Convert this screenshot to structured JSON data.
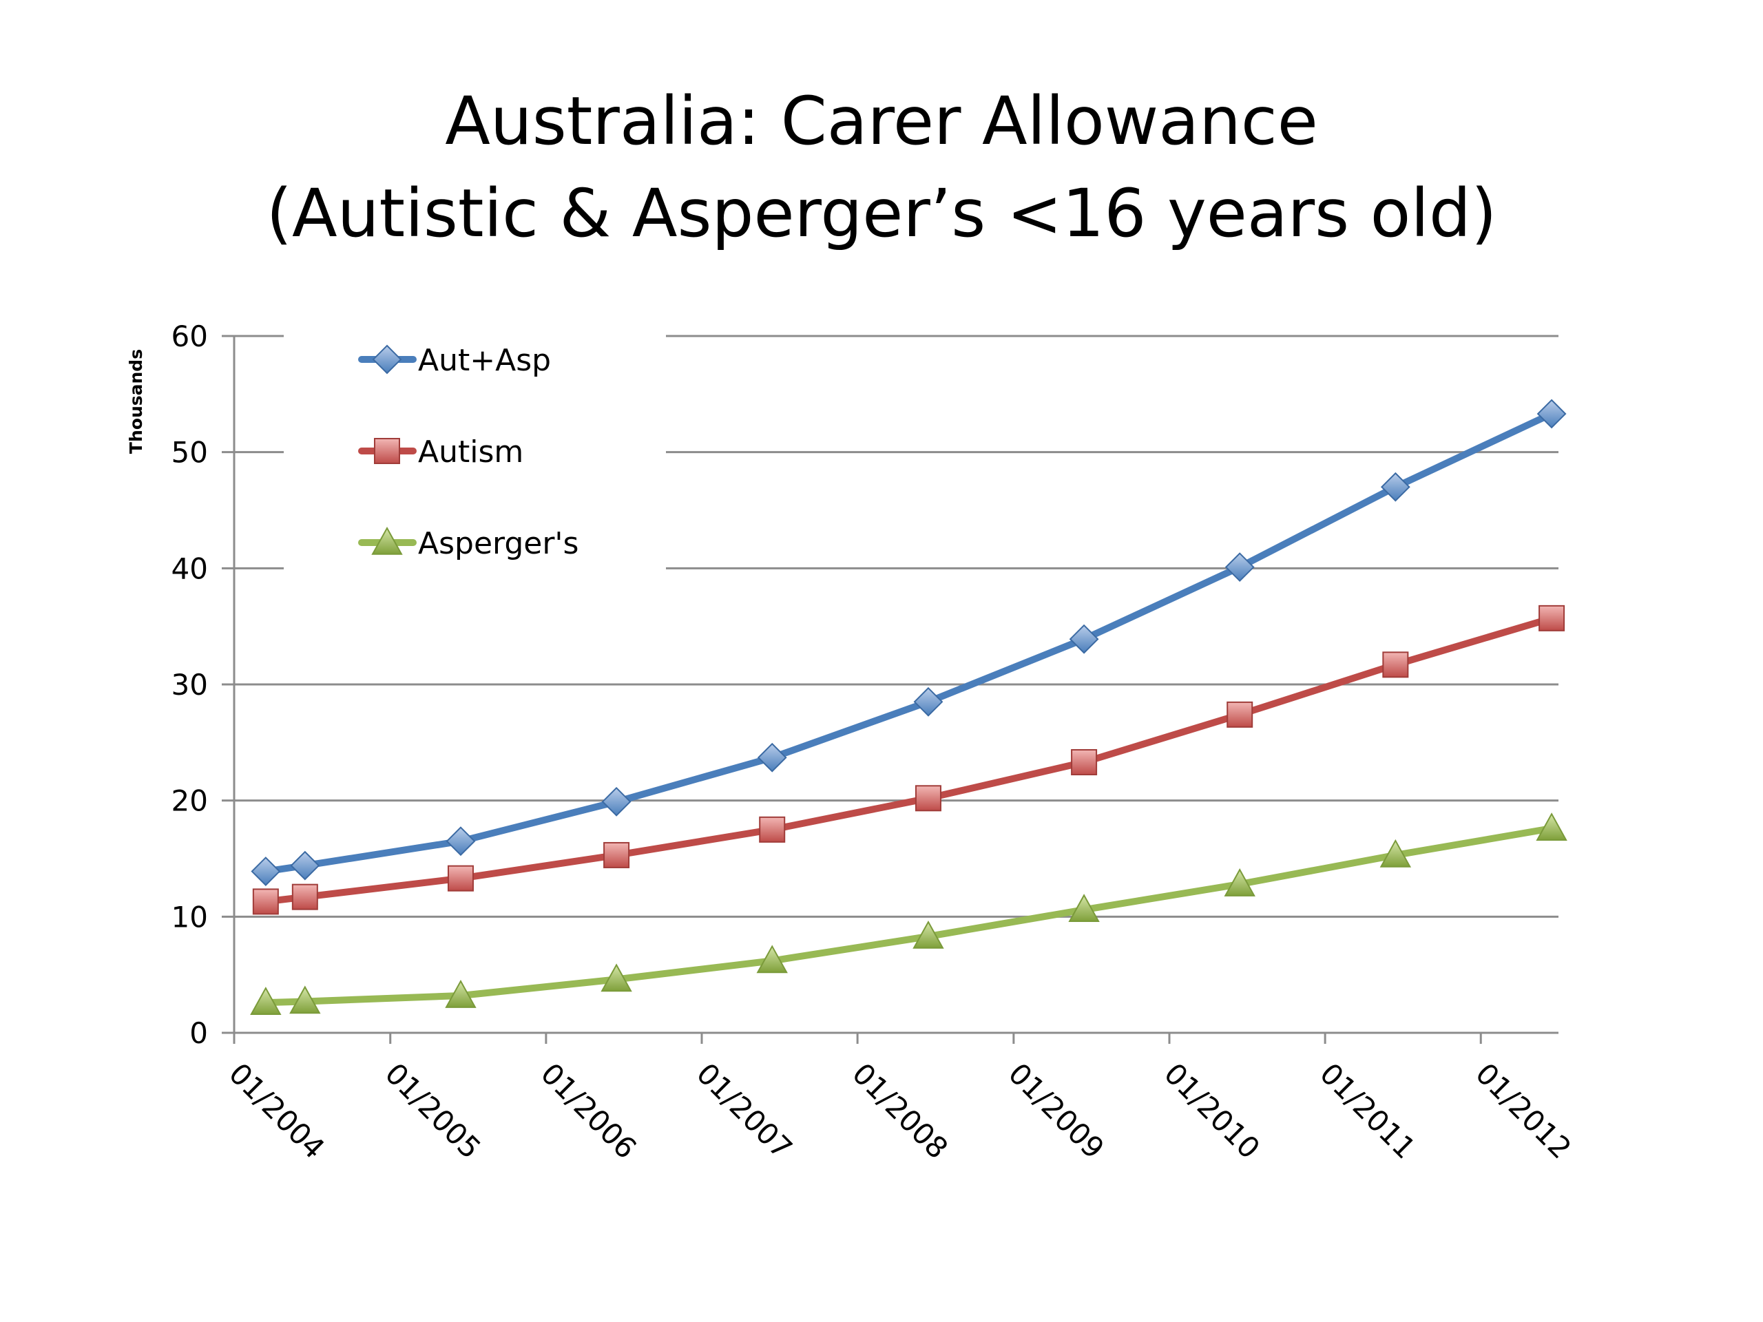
{
  "title_line_1": "Australia:  Carer Allowance",
  "title_line_2": "(Autistic & Asperger’s <16 years old)",
  "chart_data": {
    "type": "line",
    "title": "Australia:  Carer Allowance (Autistic & Asperger’s <16 years old)",
    "xlabel": "",
    "ylabel": "Thousands",
    "ylim": [
      0,
      60
    ],
    "y_ticks": [
      "0",
      "10",
      "20",
      "30",
      "40",
      "50",
      "60"
    ],
    "x_ticks": [
      "01/2004",
      "01/2005",
      "01/2006",
      "01/2007",
      "01/2008",
      "01/2009",
      "01/2010",
      "01/2011",
      "01/2012"
    ],
    "x": [
      "2004-03",
      "2004-06",
      "2005-06",
      "2006-06",
      "2007-06",
      "2008-06",
      "2009-06",
      "2010-06",
      "2011-06",
      "2012-06"
    ],
    "grid": true,
    "legend_position": "top-left",
    "series": [
      {
        "name": "Aut+Asp",
        "color": "#4A7EBB",
        "marker": "diamond",
        "values": [
          13.9,
          14.4,
          16.5,
          19.9,
          23.7,
          28.5,
          33.9,
          40.1,
          47.0,
          53.3
        ]
      },
      {
        "name": "Autism",
        "color": "#BE4B48",
        "marker": "square",
        "values": [
          11.3,
          11.7,
          13.3,
          15.3,
          17.5,
          20.2,
          23.3,
          27.4,
          31.7,
          35.7
        ]
      },
      {
        "name": "Asperger's",
        "color": "#98B954",
        "marker": "triangle",
        "values": [
          2.6,
          2.7,
          3.2,
          4.6,
          6.2,
          8.3,
          10.6,
          12.8,
          15.3,
          17.6
        ]
      }
    ]
  }
}
